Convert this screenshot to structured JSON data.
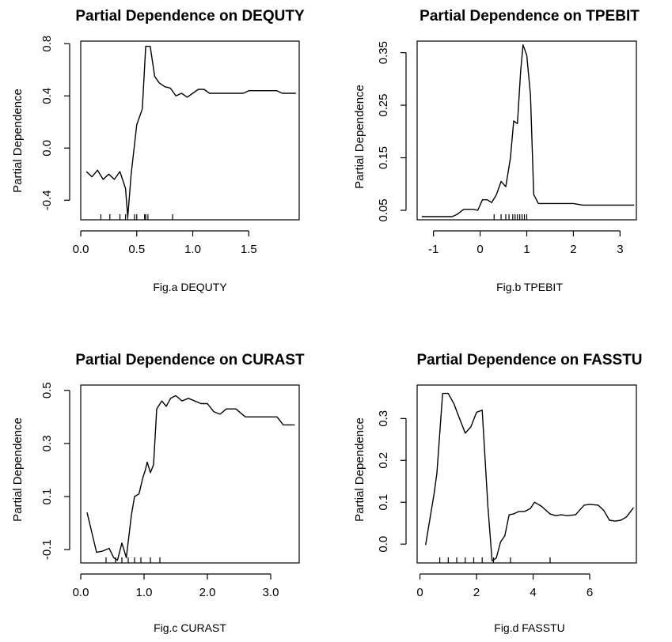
{
  "chart_data": [
    {
      "type": "line",
      "title": "Partial Dependence on DEQUTY",
      "ylabel": "Partial  Dependence",
      "xlabel": "Fig.a DEQUTY",
      "xlim": [
        0.0,
        1.95
      ],
      "ylim": [
        -0.55,
        0.82
      ],
      "x_ticks": [
        0.0,
        0.5,
        1.0,
        1.5
      ],
      "x_tick_labels": [
        "0.0",
        "0.5",
        "1.0",
        "1.5"
      ],
      "y_ticks": [
        -0.4,
        0.0,
        0.4,
        0.8
      ],
      "y_tick_labels": [
        "-0.4",
        "0.0",
        "0.4",
        "0.8"
      ],
      "x": [
        0.05,
        0.1,
        0.15,
        0.2,
        0.25,
        0.3,
        0.35,
        0.4,
        0.42,
        0.45,
        0.5,
        0.55,
        0.58,
        0.62,
        0.66,
        0.7,
        0.75,
        0.8,
        0.85,
        0.9,
        0.95,
        1.0,
        1.05,
        1.1,
        1.15,
        1.3,
        1.45,
        1.5,
        1.65,
        1.75,
        1.8,
        1.92
      ],
      "y": [
        -0.18,
        -0.22,
        -0.17,
        -0.24,
        -0.2,
        -0.24,
        -0.18,
        -0.31,
        -0.53,
        -0.2,
        0.18,
        0.3,
        0.78,
        0.78,
        0.55,
        0.5,
        0.47,
        0.46,
        0.4,
        0.42,
        0.39,
        0.42,
        0.45,
        0.45,
        0.42,
        0.42,
        0.42,
        0.44,
        0.44,
        0.44,
        0.42,
        0.42
      ],
      "rug": [
        0.18,
        0.26,
        0.35,
        0.4,
        0.42,
        0.48,
        0.5,
        0.57,
        0.58,
        0.6,
        0.82
      ]
    },
    {
      "type": "line",
      "title": "Partial Dependence on TPEBIT",
      "ylabel": "Partial Dependence",
      "xlabel": "Fig.b TPEBIT",
      "xlim": [
        -1.35,
        3.35
      ],
      "ylim": [
        0.032,
        0.372
      ],
      "x_ticks": [
        -1,
        0,
        1,
        2,
        3
      ],
      "x_tick_labels": [
        "-1",
        "0",
        "1",
        "2",
        "3"
      ],
      "y_ticks": [
        0.05,
        0.15,
        0.25,
        0.35
      ],
      "y_tick_labels": [
        "0.05",
        "0.15",
        "0.25",
        "0.35"
      ],
      "x": [
        -1.25,
        -0.9,
        -0.6,
        -0.5,
        -0.35,
        -0.15,
        -0.05,
        0.05,
        0.15,
        0.25,
        0.35,
        0.45,
        0.55,
        0.65,
        0.72,
        0.8,
        0.87,
        0.92,
        1.0,
        1.08,
        1.15,
        1.25,
        1.5,
        2.0,
        2.2,
        3.3
      ],
      "y": [
        0.038,
        0.038,
        0.038,
        0.042,
        0.052,
        0.052,
        0.05,
        0.07,
        0.07,
        0.065,
        0.08,
        0.105,
        0.095,
        0.15,
        0.22,
        0.215,
        0.315,
        0.365,
        0.345,
        0.27,
        0.08,
        0.063,
        0.063,
        0.063,
        0.06,
        0.06
      ],
      "rug": [
        0.3,
        0.45,
        0.55,
        0.62,
        0.7,
        0.75,
        0.8,
        0.85,
        0.9,
        0.95,
        1.0
      ]
    },
    {
      "type": "line",
      "title": "Partial Dependence on CURAST",
      "ylabel": "Partial Dependence",
      "xlabel": "Fig.c CURAST",
      "xlim": [
        0.0,
        3.45
      ],
      "ylim": [
        -0.15,
        0.52
      ],
      "x_ticks": [
        0.0,
        1.0,
        2.0,
        3.0
      ],
      "x_tick_labels": [
        "0.0",
        "1.0",
        "2.0",
        "3.0"
      ],
      "y_ticks": [
        -0.1,
        0.1,
        0.3,
        0.5
      ],
      "y_tick_labels": [
        "-0.1",
        "0.1",
        "0.3",
        "0.5"
      ],
      "x": [
        0.1,
        0.25,
        0.35,
        0.45,
        0.52,
        0.58,
        0.65,
        0.72,
        0.8,
        0.85,
        0.92,
        0.98,
        1.02,
        1.05,
        1.1,
        1.15,
        1.2,
        1.28,
        1.35,
        1.42,
        1.5,
        1.6,
        1.7,
        1.8,
        1.9,
        2.0,
        2.1,
        2.2,
        2.3,
        2.45,
        2.6,
        2.8,
        3.0,
        3.1,
        3.2,
        3.38
      ],
      "y": [
        0.04,
        -0.11,
        -0.105,
        -0.095,
        -0.13,
        -0.14,
        -0.075,
        -0.13,
        0.03,
        0.1,
        0.11,
        0.17,
        0.2,
        0.23,
        0.19,
        0.22,
        0.43,
        0.46,
        0.44,
        0.47,
        0.48,
        0.46,
        0.47,
        0.46,
        0.45,
        0.45,
        0.42,
        0.41,
        0.43,
        0.43,
        0.4,
        0.4,
        0.4,
        0.4,
        0.37,
        0.37
      ],
      "rug": [
        0.4,
        0.55,
        0.65,
        0.75,
        0.85,
        0.95,
        1.1,
        1.25
      ]
    },
    {
      "type": "line",
      "title": "Partial Dependence on FASSTU",
      "ylabel": "Partial Dependence",
      "xlabel": "Fig.d FASSTU",
      "xlim": [
        -0.1,
        7.65
      ],
      "ylim": [
        -0.045,
        0.38
      ],
      "x_ticks": [
        0,
        2,
        4,
        6
      ],
      "x_tick_labels": [
        "0",
        "2",
        "4",
        "6"
      ],
      "y_ticks": [
        0.0,
        0.1,
        0.2,
        0.3
      ],
      "y_tick_labels": [
        "0.0",
        "0.1",
        "0.2",
        "0.3"
      ],
      "x": [
        0.2,
        0.5,
        0.6,
        0.8,
        1.0,
        1.2,
        1.4,
        1.6,
        1.8,
        2.0,
        2.2,
        2.4,
        2.55,
        2.7,
        2.85,
        3.0,
        3.15,
        3.3,
        3.5,
        3.7,
        3.9,
        4.05,
        4.3,
        4.6,
        4.8,
        5.0,
        5.2,
        5.5,
        5.8,
        6.0,
        6.3,
        6.5,
        6.7,
        6.9,
        7.1,
        7.3,
        7.55
      ],
      "y": [
        -0.002,
        0.12,
        0.17,
        0.36,
        0.36,
        0.335,
        0.3,
        0.265,
        0.28,
        0.315,
        0.32,
        0.09,
        -0.04,
        -0.033,
        0.005,
        0.02,
        0.07,
        0.072,
        0.078,
        0.078,
        0.085,
        0.1,
        0.09,
        0.072,
        0.068,
        0.07,
        0.068,
        0.07,
        0.093,
        0.095,
        0.093,
        0.08,
        0.057,
        0.055,
        0.057,
        0.065,
        0.087
      ],
      "rug": [
        0.7,
        1.0,
        1.3,
        1.6,
        1.9,
        2.2,
        2.6,
        3.2,
        4.6
      ]
    }
  ]
}
